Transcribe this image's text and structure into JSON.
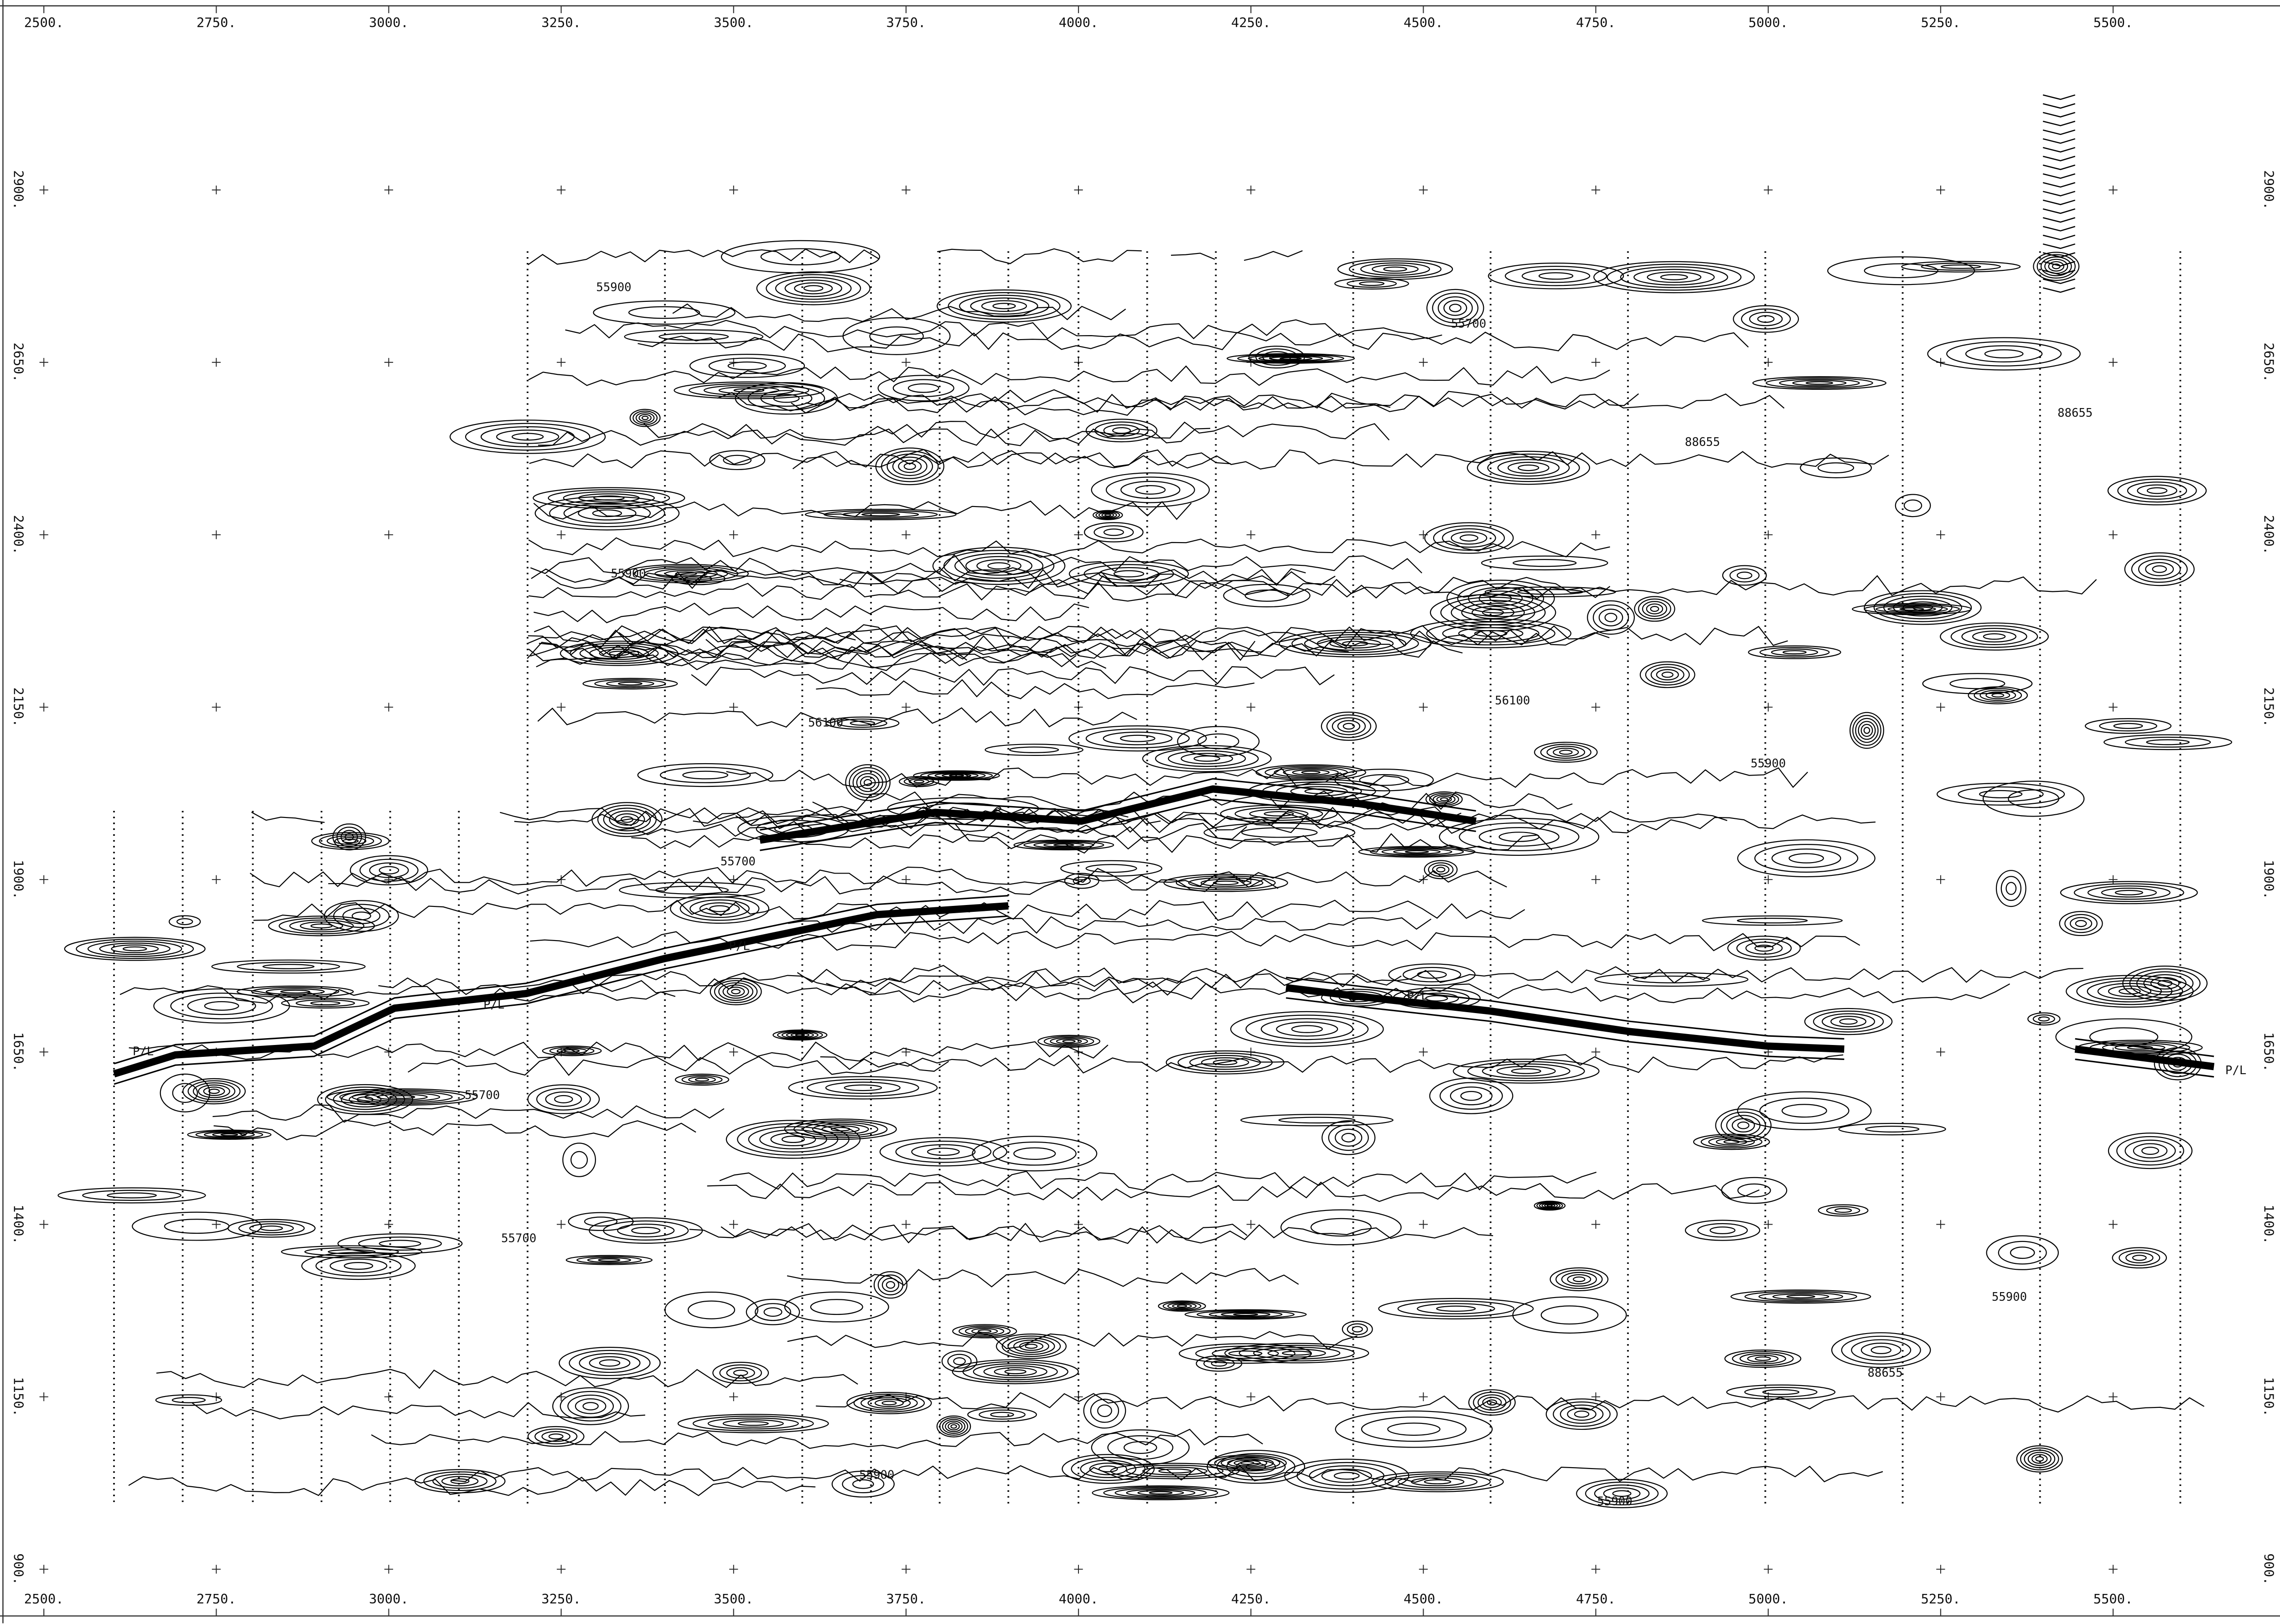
{
  "x_axis_top": [
    "2500.",
    "2750.",
    "3000.",
    "3250.",
    "3500.",
    "3750.",
    "4000.",
    "4250.",
    "4500.",
    "4750.",
    "5000.",
    "5250.",
    "5500."
  ],
  "x_axis_bottom": [
    "2500.",
    "2750.",
    "3000.",
    "3250.",
    "3500.",
    "3750.",
    "4000.",
    "4250.",
    "4500.",
    "4750.",
    "5000.",
    "5250.",
    "5500."
  ],
  "y_axis_left": [
    "2900.",
    "2650.",
    "2400.",
    "2150.",
    "1900.",
    "1650.",
    "1400.",
    "1150.",
    "900."
  ],
  "y_axis_right": [
    "2900.",
    "2650.",
    "2400.",
    "2150.",
    "1900.",
    "1650.",
    "1400.",
    "1150.",
    "900."
  ],
  "contour_labels": [
    "P/L",
    "P/L",
    "P/L",
    "P/L",
    "P/L",
    "55900",
    "55700",
    "56100",
    "55900",
    "88655",
    "55700",
    "55900",
    "56100",
    "88655",
    "55900",
    "55700",
    "55900",
    "88655",
    "55700",
    "55900"
  ]
}
